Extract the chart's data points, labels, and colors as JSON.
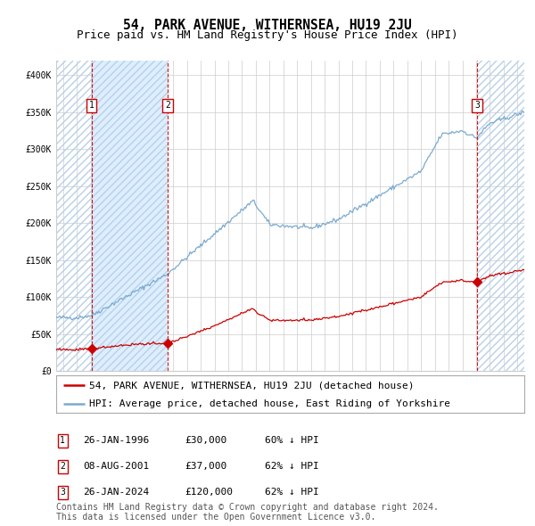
{
  "title": "54, PARK AVENUE, WITHERNSEA, HU19 2JU",
  "subtitle": "Price paid vs. HM Land Registry's House Price Index (HPI)",
  "ylim": [
    0,
    420000
  ],
  "yticks": [
    0,
    50000,
    100000,
    150000,
    200000,
    250000,
    300000,
    350000,
    400000
  ],
  "ytick_labels": [
    "£0",
    "£50K",
    "£100K",
    "£150K",
    "£200K",
    "£250K",
    "£300K",
    "£350K",
    "£400K"
  ],
  "xlim_start": 1993.5,
  "xlim_end": 2027.5,
  "sale_dates": [
    1996.07,
    2001.59,
    2024.07
  ],
  "sale_prices": [
    30000,
    37000,
    120000
  ],
  "sale_labels": [
    "1",
    "2",
    "3"
  ],
  "hpi_line_color": "#7aaad0",
  "hpi_fill_color": "#ddeeff",
  "hpi_hatch_color": "#b8d0e8",
  "price_line_color": "#cc0000",
  "sale_marker_color": "#cc0000",
  "vline_color": "#cc0000",
  "shade_xmin": 1996.07,
  "shade_xmax": 2001.59,
  "background_color": "#ffffff",
  "grid_color": "#cccccc",
  "legend_labels": [
    "54, PARK AVENUE, WITHERNSEA, HU19 2JU (detached house)",
    "HPI: Average price, detached house, East Riding of Yorkshire"
  ],
  "table_rows": [
    [
      "1",
      "26-JAN-1996",
      "£30,000",
      "60% ↓ HPI"
    ],
    [
      "2",
      "08-AUG-2001",
      "£37,000",
      "62% ↓ HPI"
    ],
    [
      "3",
      "26-JAN-2024",
      "£120,000",
      "62% ↓ HPI"
    ]
  ],
  "footnote": "Contains HM Land Registry data © Crown copyright and database right 2024.\nThis data is licensed under the Open Government Licence v3.0.",
  "title_fontsize": 10.5,
  "subtitle_fontsize": 9,
  "tick_fontsize": 7,
  "legend_fontsize": 8,
  "table_fontsize": 8,
  "footnote_fontsize": 7
}
